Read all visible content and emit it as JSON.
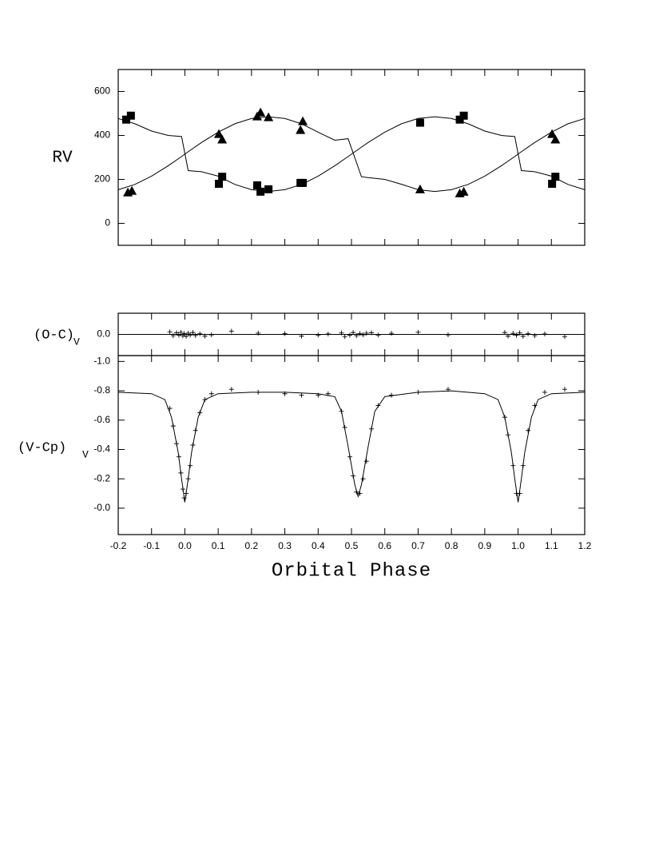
{
  "chart_data": [
    {
      "type": "scatter",
      "ylabel": "RV",
      "ylim": [
        -100,
        700
      ],
      "yticks": [
        0,
        200,
        400,
        600
      ],
      "series": [
        {
          "kind": "line",
          "color": "#000000",
          "x": [
            -0.2,
            -0.15,
            -0.1,
            -0.05,
            -0.01,
            0.01,
            0.05,
            0.1,
            0.15,
            0.2,
            0.25,
            0.3,
            0.35,
            0.4,
            0.45,
            0.49,
            0.53,
            0.55,
            0.6,
            0.65,
            0.7,
            0.75,
            0.8,
            0.85,
            0.9,
            0.95,
            0.99,
            1.01,
            1.05,
            1.1,
            1.15,
            1.2
          ],
          "values": [
            153,
            177,
            215,
            262,
            304,
            326,
            368,
            415,
            453,
            477,
            485,
            477,
            453,
            415,
            378,
            385,
            212,
            208,
            200,
            178,
            153,
            145,
            153,
            177,
            215,
            262,
            304,
            326,
            368,
            415,
            453,
            477
          ]
        },
        {
          "kind": "line",
          "color": "#000000",
          "x": [
            -0.2,
            -0.15,
            -0.1,
            -0.05,
            -0.01,
            0.01,
            0.05,
            0.1,
            0.15,
            0.2,
            0.25,
            0.3,
            0.35,
            0.4,
            0.45,
            0.49,
            0.53,
            0.55,
            0.6,
            0.65,
            0.7,
            0.75,
            0.8,
            0.85,
            0.9,
            0.95,
            0.99,
            1.01,
            1.05,
            1.1,
            1.15,
            1.2
          ],
          "values": [
            477,
            453,
            420,
            400,
            395,
            240,
            235,
            215,
            177,
            153,
            145,
            153,
            177,
            215,
            262,
            304,
            347,
            368,
            415,
            453,
            477,
            485,
            477,
            453,
            420,
            400,
            395,
            240,
            235,
            215,
            177,
            153
          ]
        },
        {
          "kind": "square",
          "color": "#000000",
          "x": [
            -0.176,
            -0.162,
            0.102,
            0.112,
            0.217,
            0.227,
            0.251,
            0.347,
            0.354,
            0.706,
            0.825,
            0.837,
            1.102,
            1.112
          ],
          "values": [
            472,
            490,
            180,
            212,
            173,
            144,
            155,
            184,
            184,
            458,
            472,
            490,
            180,
            212
          ]
        },
        {
          "kind": "triangle",
          "color": "#000000",
          "x": [
            -0.171,
            -0.159,
            0.102,
            0.112,
            0.217,
            0.227,
            0.251,
            0.347,
            0.354,
            0.706,
            0.825,
            0.837,
            1.102,
            1.112
          ],
          "values": [
            141,
            148,
            407,
            382,
            487,
            505,
            483,
            425,
            465,
            155,
            137,
            144,
            407,
            382
          ]
        }
      ]
    },
    {
      "type": "scatter",
      "ylabel": "(O-C)",
      "ylabel_sub": "V",
      "ylim": [
        0.1,
        -0.1
      ],
      "yticks": [
        {
          "value": 0,
          "label": "0.0"
        }
      ],
      "series": [
        {
          "kind": "line",
          "color": "#000000",
          "x": [
            -0.2,
            1.2
          ],
          "values": [
            0,
            0
          ]
        },
        {
          "kind": "plus",
          "color": "#000000",
          "x": [
            -0.045,
            -0.035,
            -0.025,
            -0.018,
            -0.012,
            -0.006,
            -0.002,
            0.004,
            0.01,
            0.016,
            0.024,
            0.032,
            0.045,
            0.06,
            0.08,
            0.14,
            0.22,
            0.3,
            0.35,
            0.4,
            0.43,
            0.47,
            0.48,
            0.495,
            0.505,
            0.515,
            0.525,
            0.535,
            0.545,
            0.56,
            0.58,
            0.62,
            0.7,
            0.79,
            0.96,
            0.97,
            0.985,
            0.995,
            1.005,
            1.015,
            1.03,
            1.05,
            1.08,
            1.14
          ],
          "values": [
            -0.012,
            0.006,
            -0.008,
            0.004,
            -0.01,
            0.007,
            -0.004,
            0.009,
            -0.006,
            0.003,
            -0.009,
            0.005,
            -0.003,
            0.008,
            0.002,
            -0.015,
            -0.006,
            -0.004,
            0.008,
            0.003,
            -0.002,
            -0.007,
            0.01,
            0.004,
            -0.009,
            0.006,
            -0.004,
            0.002,
            -0.006,
            -0.008,
            0.003,
            -0.005,
            -0.01,
            0.002,
            -0.009,
            0.008,
            -0.005,
            0.004,
            -0.007,
            0.009,
            -0.003,
            0.006,
            -0.002,
            0.01
          ]
        }
      ]
    },
    {
      "type": "scatter",
      "ylabel": "(V-Cp)",
      "ylabel_sub": "V",
      "xlabel": "Orbital Phase",
      "xlim": [
        -0.2,
        1.2
      ],
      "xticks": [
        -0.2,
        -0.1,
        {
          "value": 0,
          "label": "0.0"
        },
        0.1,
        0.2,
        0.3,
        0.4,
        0.5,
        0.6,
        0.7,
        0.8,
        0.9,
        {
          "value": 1,
          "label": "1.0"
        },
        1.1,
        1.2
      ],
      "ylim": [
        0.18,
        -1.04
      ],
      "yticks": [
        {
          "value": -1,
          "label": "-1.0"
        },
        -0.8,
        -0.6,
        -0.4,
        -0.2,
        {
          "value": 0,
          "label": "-0.0"
        }
      ],
      "series": [
        {
          "kind": "line",
          "color": "#000000",
          "x": [
            -0.2,
            -0.1,
            -0.06,
            -0.04,
            -0.02,
            -0.01,
            0,
            0.01,
            0.02,
            0.04,
            0.06,
            0.1,
            0.2,
            0.3,
            0.4,
            0.45,
            0.47,
            0.49,
            0.51,
            0.52,
            0.53,
            0.55,
            0.57,
            0.6,
            0.7,
            0.8,
            0.9,
            0.94,
            0.96,
            0.98,
            0.99,
            1,
            1.01,
            1.02,
            1.04,
            1.06,
            1.1,
            1.2
          ],
          "values": [
            -0.79,
            -0.78,
            -0.74,
            -0.62,
            -0.38,
            -0.2,
            -0.04,
            -0.2,
            -0.38,
            -0.62,
            -0.74,
            -0.78,
            -0.79,
            -0.79,
            -0.78,
            -0.76,
            -0.66,
            -0.42,
            -0.16,
            -0.08,
            -0.16,
            -0.42,
            -0.66,
            -0.76,
            -0.79,
            -0.8,
            -0.78,
            -0.74,
            -0.62,
            -0.38,
            -0.2,
            -0.04,
            -0.2,
            -0.38,
            -0.62,
            -0.74,
            -0.78,
            -0.79
          ]
        },
        {
          "kind": "plus",
          "color": "#000000",
          "x": [
            -0.045,
            -0.035,
            -0.025,
            -0.018,
            -0.012,
            -0.006,
            -0.002,
            0.004,
            0.01,
            0.016,
            0.024,
            0.032,
            0.045,
            0.06,
            0.08,
            0.14,
            0.22,
            0.3,
            0.35,
            0.4,
            0.43,
            0.47,
            0.48,
            0.495,
            0.505,
            0.515,
            0.525,
            0.535,
            0.545,
            0.56,
            0.58,
            0.62,
            0.7,
            0.79,
            0.96,
            0.97,
            0.985,
            0.995,
            1.005,
            1.015,
            1.03,
            1.05,
            1.08,
            1.14
          ],
          "values": [
            -0.68,
            -0.56,
            -0.44,
            -0.35,
            -0.24,
            -0.13,
            -0.07,
            -0.1,
            -0.2,
            -0.29,
            -0.43,
            -0.53,
            -0.65,
            -0.74,
            -0.78,
            -0.81,
            -0.79,
            -0.78,
            -0.77,
            -0.77,
            -0.78,
            -0.66,
            -0.55,
            -0.35,
            -0.22,
            -0.11,
            -0.1,
            -0.2,
            -0.32,
            -0.54,
            -0.7,
            -0.77,
            -0.79,
            -0.81,
            -0.62,
            -0.5,
            -0.29,
            -0.1,
            -0.1,
            -0.29,
            -0.53,
            -0.7,
            -0.79,
            -0.81
          ]
        }
      ]
    }
  ]
}
